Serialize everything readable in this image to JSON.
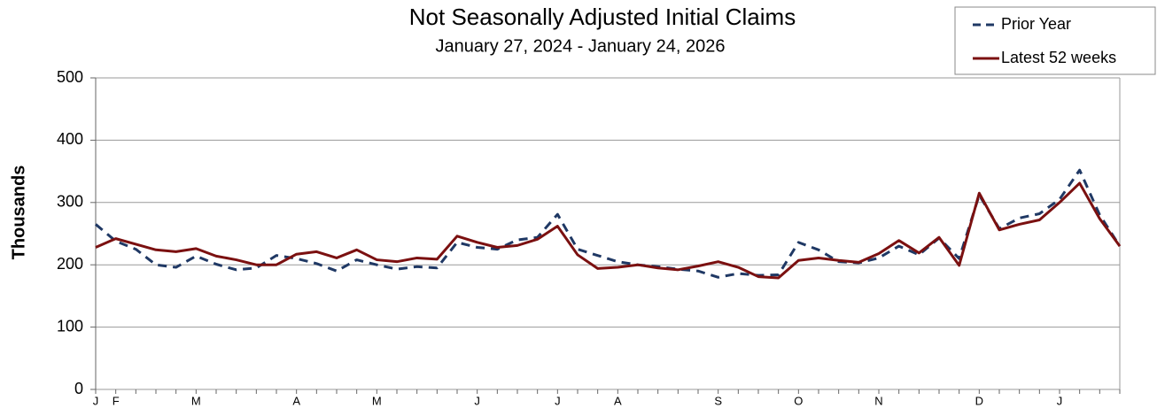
{
  "chart_data": {
    "type": "line",
    "title": "Not Seasonally Adjusted Initial Claims",
    "subtitle": "January 27, 2024 - January 24, 2026",
    "y_label": "Thousands",
    "categories": [
      "J",
      "F",
      null,
      null,
      null,
      "M",
      null,
      null,
      null,
      null,
      "A",
      null,
      null,
      null,
      "M",
      null,
      null,
      null,
      null,
      "J",
      null,
      null,
      null,
      "J",
      null,
      null,
      "A",
      null,
      null,
      null,
      null,
      "S",
      null,
      null,
      null,
      "O",
      null,
      null,
      null,
      "N",
      null,
      null,
      null,
      null,
      "D",
      null,
      null,
      null,
      "J",
      null,
      null,
      null
    ],
    "series": [
      {
        "name": "Prior Year",
        "color": "#1f3864",
        "dashed": true,
        "values": [
          265,
          238,
          225,
          200,
          196,
          214,
          201,
          192,
          195,
          215,
          210,
          202,
          190,
          208,
          200,
          193,
          197,
          195,
          236,
          228,
          225,
          240,
          244,
          281,
          225,
          215,
          205,
          200,
          197,
          193,
          190,
          180,
          186,
          183,
          184,
          236,
          224,
          205,
          203,
          211,
          230,
          216,
          243,
          210,
          312,
          258,
          275,
          282,
          305,
          352,
          280,
          230
        ]
      },
      {
        "name": "Latest 52 weeks",
        "color": "#7b1010",
        "dashed": false,
        "values": [
          228,
          242,
          233,
          224,
          221,
          226,
          214,
          208,
          200,
          200,
          217,
          221,
          211,
          224,
          208,
          205,
          211,
          209,
          246,
          236,
          228,
          231,
          241,
          262,
          216,
          194,
          196,
          200,
          195,
          192,
          198,
          205,
          196,
          181,
          179,
          207,
          211,
          207,
          204,
          218,
          239,
          219,
          244,
          199,
          315,
          256,
          265,
          272,
          300,
          331,
          274,
          230
        ]
      }
    ],
    "ylim": [
      0,
      500
    ],
    "yticks": [
      0,
      100,
      200,
      300,
      400,
      500
    ],
    "grid": true
  }
}
